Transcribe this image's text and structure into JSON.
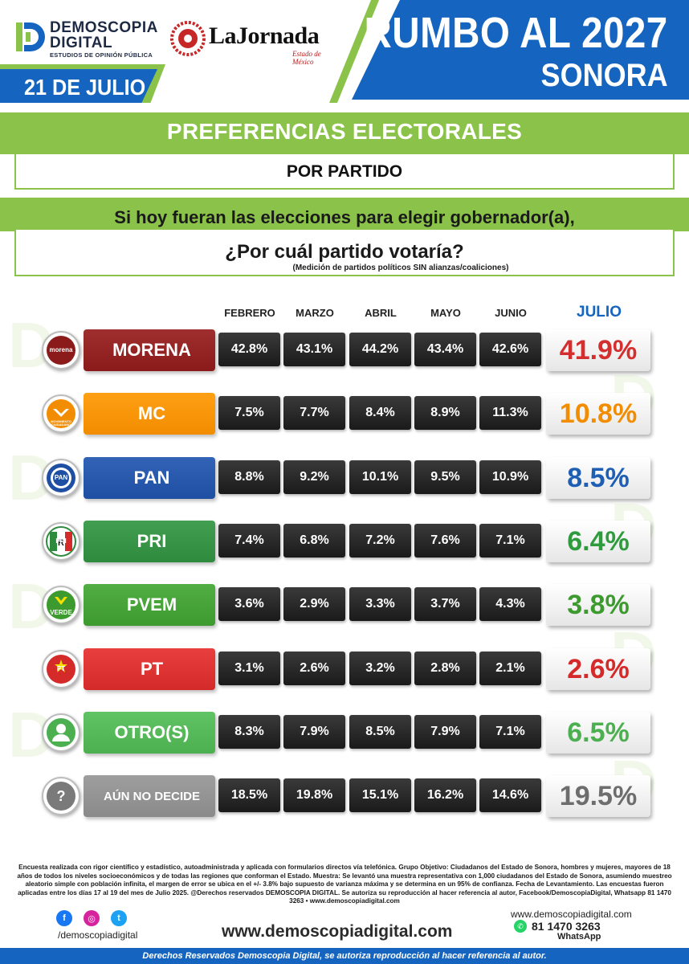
{
  "header": {
    "brand_line1": "DEMOSCOPIA",
    "brand_line2": "DIGITAL",
    "brand_tagline": "ESTUDIOS DE OPINIÓN PÚBLICA",
    "partner_name": "LaJornada",
    "partner_sub": "Estado de México",
    "date": "21 DE JULIO",
    "title": "RUMBO AL 2027",
    "region": "SONORA",
    "colors": {
      "blue": "#1565c0",
      "green": "#8bc34a"
    }
  },
  "section": {
    "title": "PREFERENCIAS ELECTORALES",
    "subtitle": "POR PARTIDO",
    "question_line1": "Si hoy fueran las elecciones para elegir gobernador(a),",
    "question_line2": "¿Por cuál partido votaría?",
    "note": "(Medición de partidos políticos SIN alianzas/coaliciones)"
  },
  "chart_data": {
    "type": "table",
    "categories": [
      "FEBRERO",
      "MARZO",
      "ABRIL",
      "MAYO",
      "JUNIO",
      "JULIO"
    ],
    "rows": [
      {
        "party": "MORENA",
        "icon": "morena",
        "icon_label": "morena",
        "color": "#8b1a1a",
        "julio_color": "#d32f2f",
        "values": [
          "42.8%",
          "43.1%",
          "44.2%",
          "43.4%",
          "42.6%",
          "41.9%"
        ]
      },
      {
        "party": "MC",
        "icon": "mc",
        "icon_label": "MOVIMIENTO CIUDADANO",
        "color": "#f28c00",
        "julio_color": "#f28c00",
        "values": [
          "7.5%",
          "7.7%",
          "8.4%",
          "8.9%",
          "11.3%",
          "10.8%"
        ]
      },
      {
        "party": "PAN",
        "icon": "pan",
        "icon_label": "PAN",
        "color": "#1e4fa3",
        "julio_color": "#1e5fb3",
        "values": [
          "8.8%",
          "9.2%",
          "10.1%",
          "9.5%",
          "10.9%",
          "8.5%"
        ]
      },
      {
        "party": "PRI",
        "icon": "pri",
        "icon_label": "PRI",
        "color": "#2e8b3d",
        "julio_color": "#2e9b3d",
        "values": [
          "7.4%",
          "6.8%",
          "7.2%",
          "7.6%",
          "7.1%",
          "6.4%"
        ]
      },
      {
        "party": "PVEM",
        "icon": "pvem",
        "icon_label": "VERDE",
        "color": "#3d9a2e",
        "julio_color": "#3d9a2e",
        "values": [
          "3.6%",
          "2.9%",
          "3.3%",
          "3.7%",
          "4.3%",
          "3.8%"
        ]
      },
      {
        "party": "PT",
        "icon": "pt",
        "icon_label": "PT",
        "color": "#d42a2a",
        "julio_color": "#d42a2a",
        "values": [
          "3.1%",
          "2.6%",
          "3.2%",
          "2.8%",
          "2.1%",
          "2.6%"
        ]
      },
      {
        "party": "OTRO(S)",
        "icon": "person",
        "icon_label": "",
        "color": "#4caf50",
        "julio_color": "#4caf50",
        "values": [
          "8.3%",
          "7.9%",
          "8.5%",
          "7.9%",
          "7.1%",
          "6.5%"
        ]
      },
      {
        "party": "AÚN NO DECIDE",
        "icon": "question",
        "icon_label": "?",
        "color": "#8a8a8a",
        "julio_color": "#6d6d6d",
        "values": [
          "18.5%",
          "19.8%",
          "15.1%",
          "16.2%",
          "14.6%",
          "19.5%"
        ]
      }
    ]
  },
  "footer": {
    "methodology": "Encuesta realizada con rigor científico y estadístico, autoadministrada y aplicada con formularios directos vía telefónica. Grupo Objetivo: Ciudadanos del Estado de Sonora, hombres y mujeres, mayores de 18 años de todos los niveles socioeconómicos y de todas las regiones que conforman el Estado. Muestra: Se levantó una muestra representativa con 1,000 ciudadanos del Estado de Sonora, asumiendo muestreo aleatorio simple con población infinita, el margen de error se ubica en el +/- 3.8% bajo supuesto de varianza máxima y se determina en un 95% de confianza. Fecha de Levantamiento. Las encuestas fueron aplicadas entre los días 17 al 19 del mes de Julio 2025. @Derechos reservados DEMOSCOPIA DIGITAL. Se autoriza su reproducción al hacer referencia al autor, Facebook/DemoscopiaDigital, Whatsapp 81 1470 3263 • www.demoscopiadigital.com",
    "handle": "/demoscopiadigital",
    "website_big": "www.demoscopiadigital.com",
    "website_small": "www.demoscopiadigital.com",
    "phone": "81 1470 3263",
    "whatsapp_label": "WhatsApp",
    "rights": "Derechos Reservados Demoscopia Digital, se autoriza reproducción al hacer referencia al autor.",
    "social_icons": [
      "facebook-icon",
      "instagram-icon",
      "twitter-icon"
    ]
  }
}
